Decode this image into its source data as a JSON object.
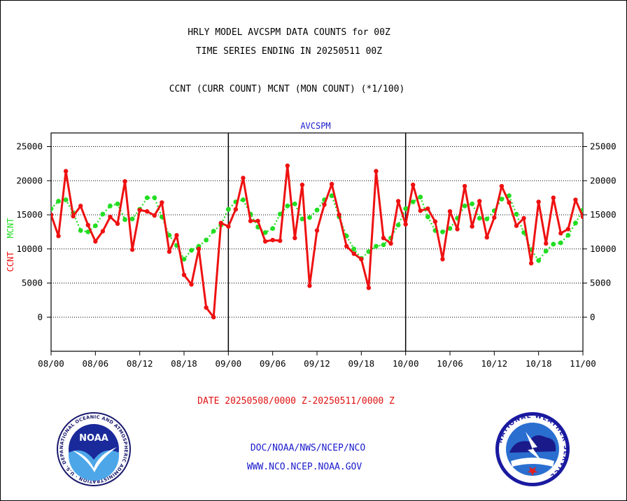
{
  "header": {
    "line1": "HRLY MODEL AVCSPM DATA COUNTS for 00Z",
    "line2": "TIME SERIES ENDING IN 20250511 00Z",
    "line3": "CCNT (CURR COUNT) MCNT (MON COUNT) (*1/100)"
  },
  "footer": {
    "date_range": "DATE 20250508/0000 Z-20250511/0000 Z",
    "org": "DOC/NOAA/NWS/NCEP/NCO",
    "url": "WWW.NCO.NCEP.NOAA.GOV",
    "noaa_logo_text": "NOAA",
    "noaa_ring_text": "NATIONAL OCEANIC AND ATMOSPHERIC ADMINISTRATION · U.S. DEPARTMENT OF COMMERCE",
    "nws_ring_text": "NATIONAL WEATHER SERVICE"
  },
  "colors": {
    "ccnt": "#ee1111",
    "mcnt": "#22dd22",
    "title_blue": "#1a1acc",
    "axis": "#000000"
  },
  "chart_data": {
    "type": "line",
    "title": "AVCSPM",
    "ylabel_ccnt": "CCNT",
    "ylabel_mcnt": "MCNT",
    "ylim": [
      -5000,
      27000
    ],
    "yticks": [
      0,
      5000,
      10000,
      15000,
      20000,
      25000
    ],
    "ytick_labels": [
      "0",
      "5000",
      "10000",
      "15000",
      "20000",
      "25000"
    ],
    "x_index_range": [
      0,
      72
    ],
    "xtick_index": [
      0,
      6,
      12,
      18,
      24,
      30,
      36,
      42,
      48,
      54,
      60,
      66,
      72
    ],
    "xtick_labels": [
      "08/00",
      "08/06",
      "08/12",
      "08/18",
      "09/00",
      "09/06",
      "09/12",
      "09/18",
      "10/00",
      "10/06",
      "10/12",
      "10/18",
      "11/00"
    ],
    "day_dividers_index": [
      24,
      48
    ],
    "grid": true,
    "series": [
      {
        "name": "CCNT",
        "color": "#ee1111",
        "values": [
          15000,
          11900,
          21400,
          14800,
          16300,
          13500,
          11100,
          12600,
          14700,
          13700,
          19900,
          9900,
          15700,
          15500,
          14900,
          16800,
          9600,
          12000,
          6200,
          4800,
          10000,
          1400,
          0,
          13800,
          13300,
          15800,
          20400,
          14100,
          14100,
          11100,
          11300,
          11200,
          22200,
          11600,
          19400,
          4600,
          12700,
          16500,
          19500,
          15000,
          10400,
          9300,
          8500,
          4300,
          21400,
          11600,
          10800,
          17000,
          13600,
          19400,
          15600,
          15900,
          14000,
          8500,
          15500,
          12900,
          19200,
          13300,
          17000,
          11700,
          14600,
          19200,
          16800,
          13400,
          14500,
          7900,
          16900,
          10800,
          17500,
          12300,
          12900,
          17200,
          14700
        ]
      },
      {
        "name": "MCNT",
        "color": "#22dd22",
        "values": [
          15900,
          17000,
          17200,
          15300,
          12700,
          12500,
          13400,
          15100,
          16300,
          16600,
          14300,
          14400,
          15800,
          17500,
          17500,
          14700,
          12000,
          10500,
          8500,
          9800,
          10400,
          11300,
          12600,
          13500,
          15800,
          16900,
          17200,
          15100,
          13200,
          12400,
          13000,
          15100,
          16300,
          16600,
          14400,
          14600,
          15700,
          17200,
          17800,
          14700,
          11900,
          10000,
          8600,
          9600,
          10400,
          10600,
          11600,
          13500,
          15900,
          16900,
          17600,
          14700,
          12700,
          12500,
          13000,
          14500,
          16300,
          16600,
          14500,
          14400,
          15600,
          17300,
          17800,
          15100,
          12400,
          9900,
          8300,
          9700,
          10700,
          10900,
          12000,
          13800,
          15700
        ]
      }
    ]
  }
}
